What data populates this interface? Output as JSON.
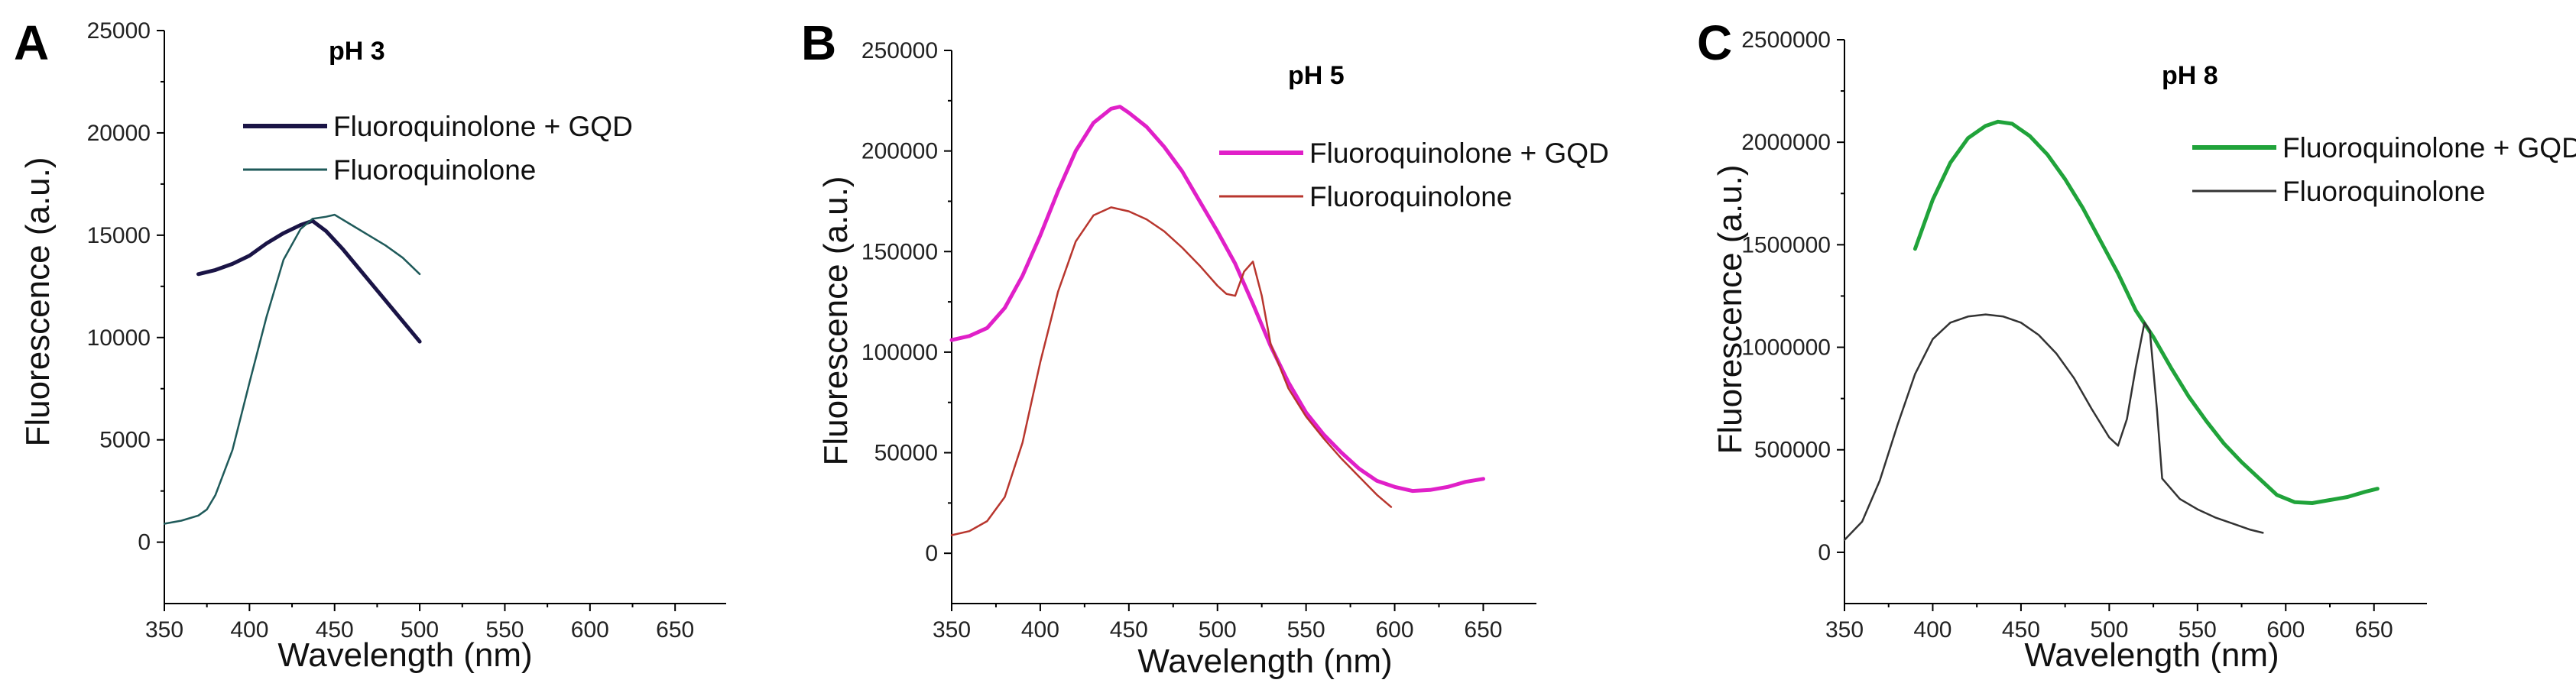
{
  "chart_data": [
    {
      "panel": "A",
      "type": "line",
      "title": "pH 3",
      "xlabel": "Wavelength (nm)",
      "ylabel": "Fluorescence (a.u.)",
      "xlim": [
        350,
        680
      ],
      "ylim": [
        -3000,
        25000
      ],
      "x_ticks": [
        350,
        400,
        450,
        500,
        550,
        600,
        650
      ],
      "y_ticks": [
        0,
        5000,
        10000,
        15000,
        20000,
        25000
      ],
      "legend_position": "top-right",
      "series": [
        {
          "name": "Fluoroquinolone + GQD",
          "color": "#1a1446",
          "style": "thick",
          "x": [
            370,
            380,
            390,
            400,
            410,
            420,
            430,
            437,
            445,
            455,
            465,
            475,
            485,
            493,
            500
          ],
          "y": [
            13100,
            13300,
            13600,
            14000,
            14600,
            15100,
            15500,
            15700,
            15200,
            14300,
            13300,
            12300,
            11300,
            10500,
            9800
          ]
        },
        {
          "name": "Fluoroquinolone",
          "color": "#1f5a5a",
          "style": "thin",
          "x": [
            350,
            360,
            370,
            375,
            380,
            390,
            400,
            410,
            420,
            430,
            437,
            445,
            450,
            460,
            470,
            480,
            490,
            500
          ],
          "y": [
            900,
            1050,
            1300,
            1600,
            2300,
            4500,
            7800,
            11000,
            13800,
            15300,
            15800,
            15900,
            16000,
            15500,
            15000,
            14500,
            13900,
            13100
          ]
        }
      ]
    },
    {
      "panel": "B",
      "type": "line",
      "title": "pH 5",
      "xlabel": "Wavelength (nm)",
      "ylabel": "Fluorescence (a.u.)",
      "xlim": [
        350,
        680
      ],
      "ylim": [
        -25000,
        250000
      ],
      "x_ticks": [
        350,
        400,
        450,
        500,
        550,
        600,
        650
      ],
      "y_ticks": [
        0,
        50000,
        100000,
        150000,
        200000,
        250000
      ],
      "legend_position": "top-right",
      "series": [
        {
          "name": "Fluoroquinolone + GQD",
          "color": "#e020c8",
          "style": "thick",
          "x": [
            350,
            360,
            370,
            380,
            390,
            400,
            410,
            420,
            430,
            440,
            445,
            450,
            460,
            470,
            480,
            490,
            500,
            510,
            520,
            530,
            540,
            550,
            560,
            570,
            580,
            590,
            600,
            610,
            620,
            630,
            640,
            650
          ],
          "y": [
            106000,
            108000,
            112000,
            122000,
            138000,
            158000,
            180000,
            200000,
            214000,
            221000,
            222000,
            219000,
            212000,
            202000,
            190000,
            175000,
            160000,
            144000,
            124000,
            103000,
            85000,
            70000,
            59000,
            50000,
            42000,
            36000,
            33000,
            31000,
            31500,
            33000,
            35500,
            37000
          ]
        },
        {
          "name": "Fluoroquinolone",
          "color": "#b8362e",
          "style": "thin",
          "x": [
            350,
            360,
            370,
            380,
            390,
            400,
            410,
            420,
            430,
            440,
            450,
            460,
            470,
            480,
            490,
            500,
            505,
            510,
            515,
            520,
            525,
            530,
            540,
            550,
            560,
            570,
            580,
            590,
            598
          ],
          "y": [
            9000,
            11000,
            16000,
            28000,
            55000,
            95000,
            130000,
            155000,
            168000,
            172000,
            170000,
            166000,
            160000,
            152000,
            143000,
            133000,
            129000,
            128000,
            140000,
            145000,
            128000,
            104000,
            82000,
            68000,
            57000,
            47000,
            38000,
            29000,
            23000
          ]
        }
      ]
    },
    {
      "panel": "C",
      "type": "line",
      "title": "pH 8",
      "xlabel": "Wavelength (nm)",
      "ylabel": "Fluorescence (a.u.)",
      "xlim": [
        350,
        680
      ],
      "ylim": [
        -250000,
        2500000
      ],
      "x_ticks": [
        350,
        400,
        450,
        500,
        550,
        600,
        650
      ],
      "y_ticks": [
        0,
        500000,
        1000000,
        1500000,
        2000000,
        2500000
      ],
      "legend_position": "top-right",
      "series": [
        {
          "name": "Fluoroquinolone + GQD",
          "color": "#20a33a",
          "style": "thick",
          "x": [
            390,
            400,
            410,
            420,
            430,
            437,
            445,
            455,
            465,
            475,
            485,
            495,
            505,
            515,
            525,
            535,
            545,
            555,
            565,
            575,
            585,
            595,
            605,
            615,
            625,
            635,
            645,
            652
          ],
          "y": [
            1480000,
            1720000,
            1900000,
            2020000,
            2080000,
            2100000,
            2090000,
            2030000,
            1940000,
            1820000,
            1680000,
            1520000,
            1360000,
            1180000,
            1050000,
            900000,
            760000,
            640000,
            530000,
            440000,
            360000,
            280000,
            245000,
            240000,
            255000,
            270000,
            295000,
            310000
          ]
        },
        {
          "name": "Fluoroquinolone",
          "color": "#333333",
          "style": "thin",
          "x": [
            350,
            360,
            370,
            380,
            390,
            400,
            410,
            420,
            430,
            440,
            450,
            460,
            470,
            480,
            490,
            500,
            505,
            510,
            515,
            520,
            523,
            527,
            530,
            540,
            550,
            560,
            570,
            580,
            587
          ],
          "y": [
            60000,
            150000,
            350000,
            620000,
            870000,
            1040000,
            1120000,
            1150000,
            1160000,
            1150000,
            1120000,
            1060000,
            970000,
            850000,
            700000,
            560000,
            520000,
            650000,
            900000,
            1120000,
            1080000,
            700000,
            360000,
            260000,
            210000,
            170000,
            140000,
            110000,
            95000
          ]
        }
      ]
    }
  ],
  "panels": {
    "A": {
      "label": "A"
    },
    "B": {
      "label": "B"
    },
    "C": {
      "label": "C"
    }
  }
}
